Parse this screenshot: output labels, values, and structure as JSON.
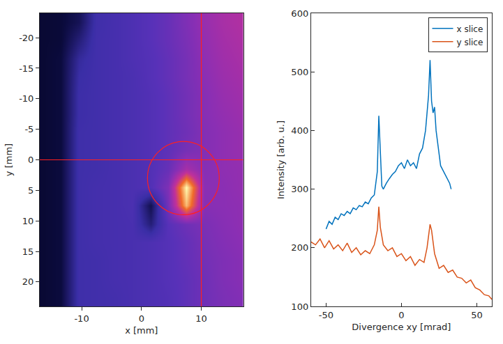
{
  "chart_data": [
    {
      "type": "heatmap",
      "xlabel": "x [mm]",
      "ylabel": "y [mm]",
      "xlim": [
        -17,
        17
      ],
      "ylim": [
        24,
        -24
      ],
      "xticks": [
        -10,
        0,
        10
      ],
      "yticks": [
        -20,
        -15,
        -10,
        -5,
        0,
        5,
        10,
        15,
        20
      ],
      "zlim": [
        0,
        100
      ],
      "x": [
        -16.5,
        -13.5,
        -10.5,
        -7.5,
        -4.5,
        -1.5,
        1.5,
        4.5,
        7.5,
        10.5,
        13.5,
        16.5
      ],
      "y": [
        -22.5,
        -19.5,
        -16.5,
        -13.5,
        -10.5,
        -7.5,
        -4.5,
        -1.5,
        1.5,
        4.5,
        7.5,
        10.5,
        13.5,
        16.5,
        19.5,
        22.5
      ],
      "z": [
        [
          10,
          11,
          16,
          32,
          35,
          38,
          42,
          46,
          52,
          58,
          62,
          64
        ],
        [
          10,
          11,
          22,
          33,
          35,
          38,
          42,
          46,
          51,
          57,
          61,
          63
        ],
        [
          10,
          12,
          28,
          33,
          35,
          38,
          41,
          45,
          50,
          56,
          60,
          62
        ],
        [
          10,
          12,
          30,
          33,
          35,
          37,
          41,
          45,
          50,
          55,
          59,
          61
        ],
        [
          10,
          12,
          31,
          33,
          35,
          37,
          40,
          44,
          49,
          54,
          58,
          60
        ],
        [
          10,
          12,
          31,
          33,
          35,
          37,
          40,
          44,
          49,
          54,
          57,
          59
        ],
        [
          10,
          12,
          32,
          33,
          35,
          37,
          40,
          44,
          48,
          53,
          56,
          58
        ],
        [
          10,
          12,
          32,
          33,
          35,
          37,
          40,
          44,
          50,
          53,
          56,
          58
        ],
        [
          10,
          12,
          32,
          33,
          35,
          37,
          40,
          46,
          62,
          54,
          56,
          57
        ],
        [
          10,
          12,
          32,
          34,
          35,
          37,
          40,
          52,
          100,
          55,
          55,
          57
        ],
        [
          10,
          12,
          32,
          34,
          35,
          37,
          15,
          50,
          92,
          54,
          55,
          56
        ],
        [
          10,
          12,
          32,
          34,
          35,
          36,
          22,
          42,
          48,
          51,
          54,
          56
        ],
        [
          10,
          12,
          32,
          34,
          35,
          36,
          38,
          41,
          45,
          50,
          53,
          55
        ],
        [
          10,
          12,
          32,
          33,
          35,
          36,
          38,
          41,
          45,
          49,
          52,
          54
        ],
        [
          10,
          12,
          32,
          33,
          35,
          36,
          38,
          41,
          44,
          48,
          52,
          54
        ],
        [
          10,
          12,
          32,
          33,
          34,
          36,
          38,
          40,
          44,
          48,
          51,
          53
        ]
      ],
      "crosshair": {
        "x": 10,
        "y": 0
      },
      "circle": {
        "x": [
          1,
          13
        ],
        "y": [
          -3,
          9
        ]
      },
      "grid": false
    },
    {
      "type": "line",
      "xlabel": "Divergence xy [mrad]",
      "ylabel": "Intensity [arb. u.]",
      "xlim": [
        -60,
        60
      ],
      "ylim": [
        100,
        600
      ],
      "xticks": [
        -50,
        0,
        50
      ],
      "yticks": [
        100,
        200,
        300,
        400,
        500,
        600
      ],
      "legend": "upper right",
      "grid": false,
      "series": [
        {
          "name": "x slice",
          "color": "#0072bd",
          "x": [
            -50,
            -48,
            -46,
            -44,
            -42,
            -40,
            -38,
            -36,
            -34,
            -32,
            -30,
            -28,
            -26,
            -24,
            -22,
            -20,
            -18,
            -16,
            -15,
            -14,
            -13,
            -12,
            -10,
            -8,
            -6,
            -4,
            -2,
            0,
            2,
            4,
            6,
            8,
            10,
            12,
            14,
            16,
            17,
            18,
            19,
            20,
            21,
            22,
            23,
            24,
            26,
            28,
            30,
            32,
            33
          ],
          "values": [
            232,
            245,
            240,
            252,
            248,
            258,
            255,
            262,
            258,
            268,
            265,
            272,
            270,
            278,
            275,
            285,
            290,
            330,
            425,
            360,
            305,
            300,
            310,
            318,
            325,
            330,
            340,
            345,
            335,
            350,
            340,
            345,
            335,
            360,
            370,
            400,
            430,
            460,
            520,
            450,
            430,
            440,
            400,
            380,
            340,
            330,
            320,
            310,
            300
          ]
        },
        {
          "name": "y slice",
          "color": "#d95319",
          "x": [
            -60,
            -57,
            -54,
            -51,
            -48,
            -45,
            -42,
            -39,
            -36,
            -33,
            -30,
            -27,
            -24,
            -21,
            -18,
            -16,
            -15,
            -14,
            -12,
            -9,
            -6,
            -3,
            0,
            3,
            6,
            9,
            12,
            15,
            17,
            19,
            20,
            22,
            25,
            28,
            31,
            34,
            37,
            40,
            43,
            46,
            49,
            52,
            55,
            58,
            60
          ],
          "values": [
            210,
            205,
            215,
            200,
            212,
            198,
            205,
            195,
            208,
            192,
            200,
            188,
            195,
            190,
            205,
            230,
            270,
            235,
            205,
            195,
            200,
            185,
            190,
            178,
            185,
            170,
            180,
            175,
            200,
            240,
            230,
            190,
            165,
            170,
            158,
            162,
            150,
            148,
            140,
            145,
            132,
            128,
            120,
            118,
            112
          ]
        }
      ]
    }
  ]
}
